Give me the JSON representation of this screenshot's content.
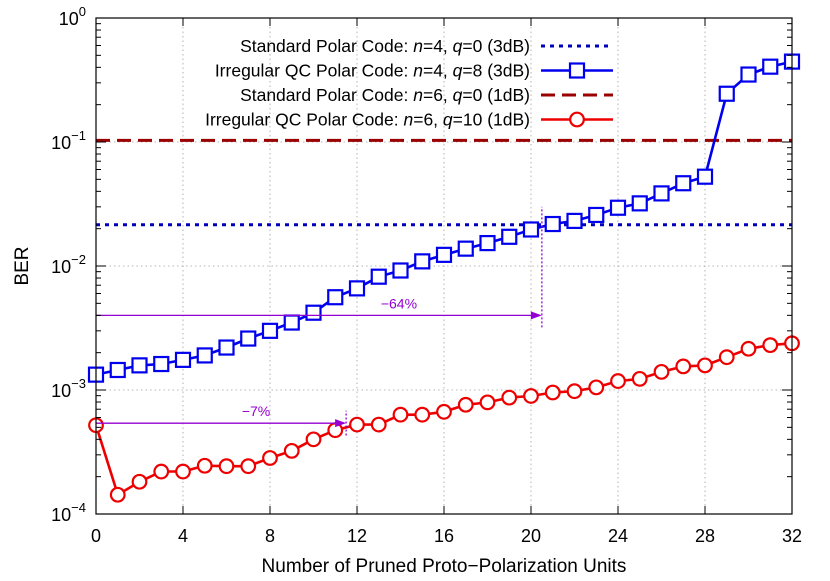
{
  "chart_data": {
    "type": "line",
    "xlabel": "Number of Pruned Proto−Polarization Units",
    "ylabel": "BER",
    "x_scale": "linear",
    "y_scale": "log",
    "xlim": [
      0,
      32
    ],
    "ylim": [
      0.0001,
      1
    ],
    "x_ticks": [
      0,
      4,
      8,
      12,
      16,
      20,
      24,
      28,
      32
    ],
    "y_ticks": [
      {
        "value": 0.0001,
        "base": "10",
        "exp": "−4"
      },
      {
        "value": 0.001,
        "base": "10",
        "exp": "−3"
      },
      {
        "value": 0.01,
        "base": "10",
        "exp": "−2"
      },
      {
        "value": 0.1,
        "base": "10",
        "exp": "−1"
      },
      {
        "value": 1,
        "base": "10",
        "exp": "0"
      }
    ],
    "grid": true,
    "legend_position": "top-right",
    "series": [
      {
        "name": "Standard Polar Code: n=4, q=0 (3dB)",
        "legend": [
          {
            "text": "Standard Polar Code: ",
            "italic": false
          },
          {
            "text": "n",
            "italic": true
          },
          {
            "text": "=4, ",
            "italic": false
          },
          {
            "text": "q",
            "italic": true
          },
          {
            "text": "=0 (3dB)",
            "italic": false
          }
        ],
        "style": "horizontal-line",
        "dash": "dotted",
        "color": "#0000bb",
        "value": 0.0215
      },
      {
        "name": "Irregular QC Polar Code: n=4, q=8 (3dB)",
        "legend": [
          {
            "text": "Irregular QC Polar Code: ",
            "italic": false
          },
          {
            "text": "n",
            "italic": true
          },
          {
            "text": "=4, ",
            "italic": false
          },
          {
            "text": "q",
            "italic": true
          },
          {
            "text": "=8 (3dB)",
            "italic": false
          }
        ],
        "style": "line-marker",
        "marker": "square",
        "color": "#0000ee",
        "x": [
          0,
          1,
          2,
          3,
          4,
          5,
          6,
          7,
          8,
          9,
          10,
          11,
          12,
          13,
          14,
          15,
          16,
          17,
          18,
          19,
          20,
          21,
          22,
          23,
          24,
          25,
          26,
          27,
          28,
          29,
          30,
          31,
          32
        ],
        "y": [
          0.00133,
          0.00145,
          0.00158,
          0.00162,
          0.00175,
          0.0019,
          0.0022,
          0.0026,
          0.003,
          0.0035,
          0.0042,
          0.0056,
          0.0066,
          0.0082,
          0.0092,
          0.0109,
          0.0123,
          0.0138,
          0.0153,
          0.0172,
          0.0197,
          0.0218,
          0.0231,
          0.0258,
          0.0295,
          0.032,
          0.0385,
          0.0465,
          0.0525,
          0.245,
          0.35,
          0.405,
          0.445
        ]
      },
      {
        "name": "Standard Polar Code: n=6, q=0 (1dB)",
        "legend": [
          {
            "text": "Standard Polar Code: ",
            "italic": false
          },
          {
            "text": "n",
            "italic": true
          },
          {
            "text": "=6, ",
            "italic": false
          },
          {
            "text": "q",
            "italic": true
          },
          {
            "text": "=0 (1dB)",
            "italic": false
          }
        ],
        "style": "horizontal-line",
        "dash": "dashed",
        "color": "#9b0000",
        "value": 0.103
      },
      {
        "name": "Irregular QC Polar Code: n=6, q=10 (1dB)",
        "legend": [
          {
            "text": "Irregular QC Polar Code: ",
            "italic": false
          },
          {
            "text": "n",
            "italic": true
          },
          {
            "text": "=6, ",
            "italic": false
          },
          {
            "text": "q",
            "italic": true
          },
          {
            "text": "=10 (1dB)",
            "italic": false
          }
        ],
        "style": "line-marker",
        "marker": "circle",
        "color": "#ee0000",
        "x": [
          0,
          1,
          2,
          3,
          4,
          5,
          6,
          7,
          8,
          9,
          10,
          11,
          12,
          13,
          14,
          15,
          16,
          17,
          18,
          19,
          20,
          21,
          22,
          23,
          24,
          25,
          26,
          27,
          28,
          29,
          30,
          31,
          32
        ],
        "y": [
          0.00052,
          0.000143,
          0.000182,
          0.00022,
          0.00022,
          0.000245,
          0.000243,
          0.000243,
          0.000283,
          0.000323,
          0.0004,
          0.000474,
          0.000526,
          0.000526,
          0.000632,
          0.000632,
          0.000667,
          0.00076,
          0.000795,
          0.000868,
          0.000895,
          0.000955,
          0.000978,
          0.00105,
          0.00118,
          0.00123,
          0.0014,
          0.00155,
          0.00158,
          0.00184,
          0.00215,
          0.0023,
          0.00238
        ]
      }
    ],
    "annotations": [
      {
        "text": "−64%",
        "color": "#9400d3",
        "arrow_from_x": 0,
        "arrow_to_x": 20.5,
        "arrow_y": 0.004,
        "marker_x": 20.5,
        "marker_y_range": [
          0.0032,
          0.03
        ]
      },
      {
        "text": "−7%",
        "color": "#9400d3",
        "arrow_from_x": 0,
        "arrow_to_x": 11.5,
        "arrow_y": 0.00054,
        "marker_x": 11.5,
        "marker_y_range": [
          0.00043,
          0.00068
        ]
      }
    ]
  }
}
